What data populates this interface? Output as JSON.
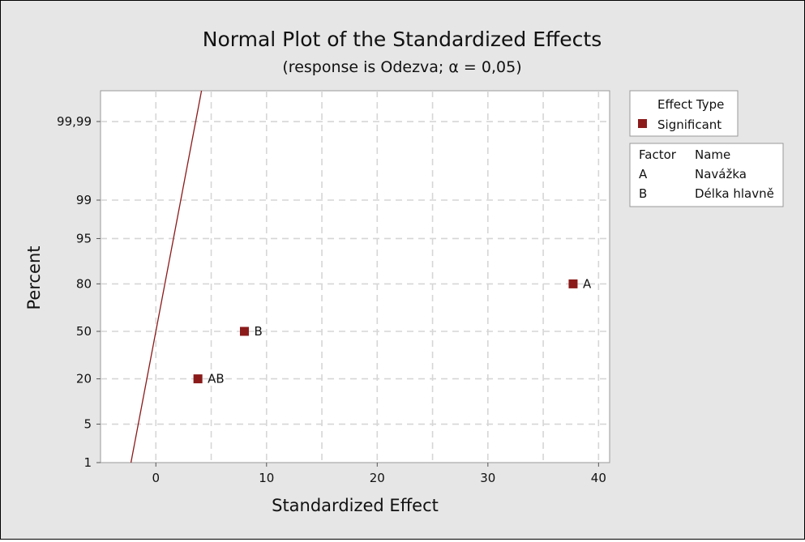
{
  "chart_data": {
    "type": "scatter",
    "title": "Normal Plot of the Standardized Effects",
    "subtitle": "(response is Odezva; α = 0,05)",
    "xlabel": "Standardized Effect",
    "ylabel": "Percent",
    "xlim": [
      -5,
      41
    ],
    "x_ticks": [
      0,
      10,
      20,
      30,
      40
    ],
    "x_tick_labels": [
      "0",
      "10",
      "20",
      "30",
      "40"
    ],
    "y_scale": "normal-probability",
    "y_ticks": [
      1,
      5,
      20,
      50,
      80,
      95,
      99,
      99.99
    ],
    "y_tick_labels": [
      "1",
      "5",
      "20",
      "50",
      "80",
      "95",
      "99",
      "99,99"
    ],
    "grid": true,
    "points": [
      {
        "label": "A",
        "x": 37.7,
        "y": 80,
        "type": "Significant"
      },
      {
        "label": "B",
        "x": 8.0,
        "y": 50,
        "type": "Significant"
      },
      {
        "label": "AB",
        "x": 3.8,
        "y": 20,
        "type": "Significant"
      }
    ],
    "reference_line": {
      "x_at_y50": 0,
      "x_at_y1": -2.25
    },
    "point_color": "#8b1a1a",
    "line_color": "#8b1a1a",
    "legend": {
      "title": "Effect Type",
      "entries": [
        {
          "label": "Significant",
          "color": "#8b1a1a"
        }
      ],
      "placement": "right"
    },
    "factor_table": {
      "headers": [
        "Factor",
        "Name"
      ],
      "rows": [
        [
          "A",
          "Navážka"
        ],
        [
          "B",
          "Délka hlavně"
        ]
      ]
    }
  }
}
